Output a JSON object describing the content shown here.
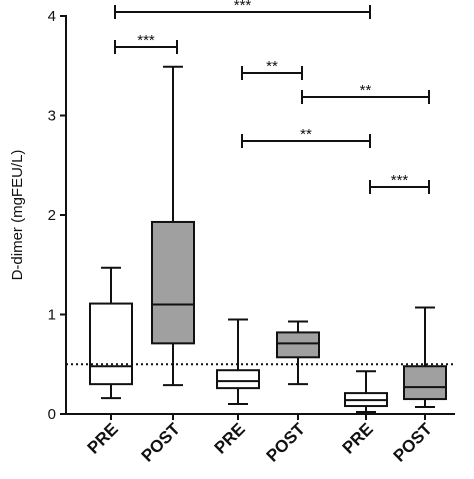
{
  "chart_data": {
    "type": "box",
    "y_label": "D-dimer (mgFEU/L)",
    "categories": [
      "PRE",
      "POST",
      "PRE",
      "POST",
      "PRE",
      "POST"
    ],
    "colors": [
      "#ffffff",
      "#a0a0a0",
      "#ffffff",
      "#a0a0a0",
      "#ffffff",
      "#a0a0a0"
    ],
    "boxes": [
      {
        "min": 0.16,
        "q1": 0.3,
        "median": 0.48,
        "q3": 1.11,
        "max": 1.47
      },
      {
        "min": 0.29,
        "q1": 0.71,
        "median": 1.1,
        "q3": 1.93,
        "max": 3.49
      },
      {
        "min": 0.1,
        "q1": 0.26,
        "median": 0.33,
        "q3": 0.44,
        "max": 0.95
      },
      {
        "min": 0.3,
        "q1": 0.57,
        "median": 0.71,
        "q3": 0.82,
        "max": 0.93
      },
      {
        "min": 0.02,
        "q1": 0.08,
        "median": 0.14,
        "q3": 0.21,
        "max": 0.43
      },
      {
        "min": 0.07,
        "q1": 0.15,
        "median": 0.27,
        "q3": 0.48,
        "max": 1.07
      }
    ],
    "reference_line": 0.5,
    "ylim": [
      0,
      4
    ],
    "yticks": [
      0,
      1,
      2,
      3,
      4
    ],
    "annotations": [
      "***",
      "***",
      "**",
      "**",
      "**",
      "***"
    ]
  }
}
